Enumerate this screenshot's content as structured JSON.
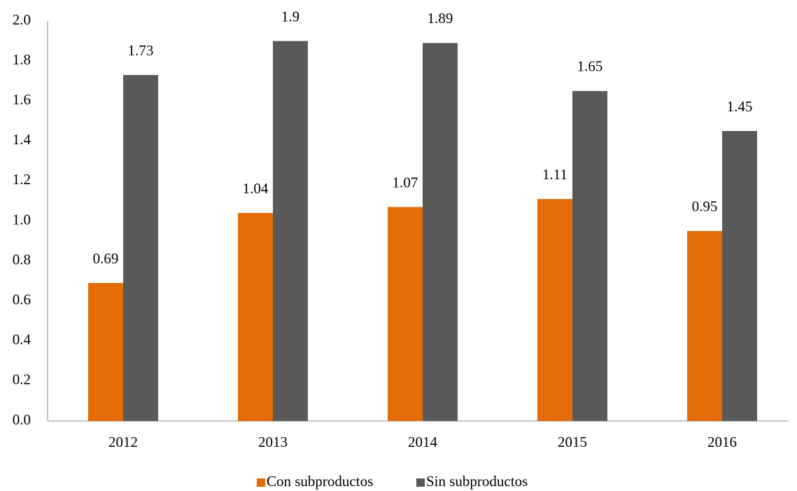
{
  "chart_data": {
    "type": "bar",
    "categories": [
      "2012",
      "2013",
      "2014",
      "2015",
      "2016"
    ],
    "series": [
      {
        "name": "Con subproductos",
        "color": "#e36c09",
        "values": [
          0.69,
          1.04,
          1.07,
          1.11,
          0.95
        ]
      },
      {
        "name": "Sin subproductos",
        "color": "#595959",
        "values": [
          1.73,
          1.9,
          1.89,
          1.65,
          1.45
        ]
      }
    ],
    "ylim": [
      0,
      2
    ],
    "yticks": [
      {
        "value": 0,
        "label": "0.0"
      },
      {
        "value": 0.2,
        "label": "0.2"
      },
      {
        "value": 0.4,
        "label": "0.4"
      },
      {
        "value": 0.6,
        "label": "0.6"
      },
      {
        "value": 0.8,
        "label": "0.8"
      },
      {
        "value": 1,
        "label": "1.0"
      },
      {
        "value": 1.2,
        "label": "1.2"
      },
      {
        "value": 1.4,
        "label": "1.4"
      },
      {
        "value": 1.6,
        "label": "1.6"
      },
      {
        "value": 1.8,
        "label": "1.8"
      },
      {
        "value": 2,
        "label": "2.0"
      }
    ],
    "grid": false,
    "legend": "bottom"
  }
}
